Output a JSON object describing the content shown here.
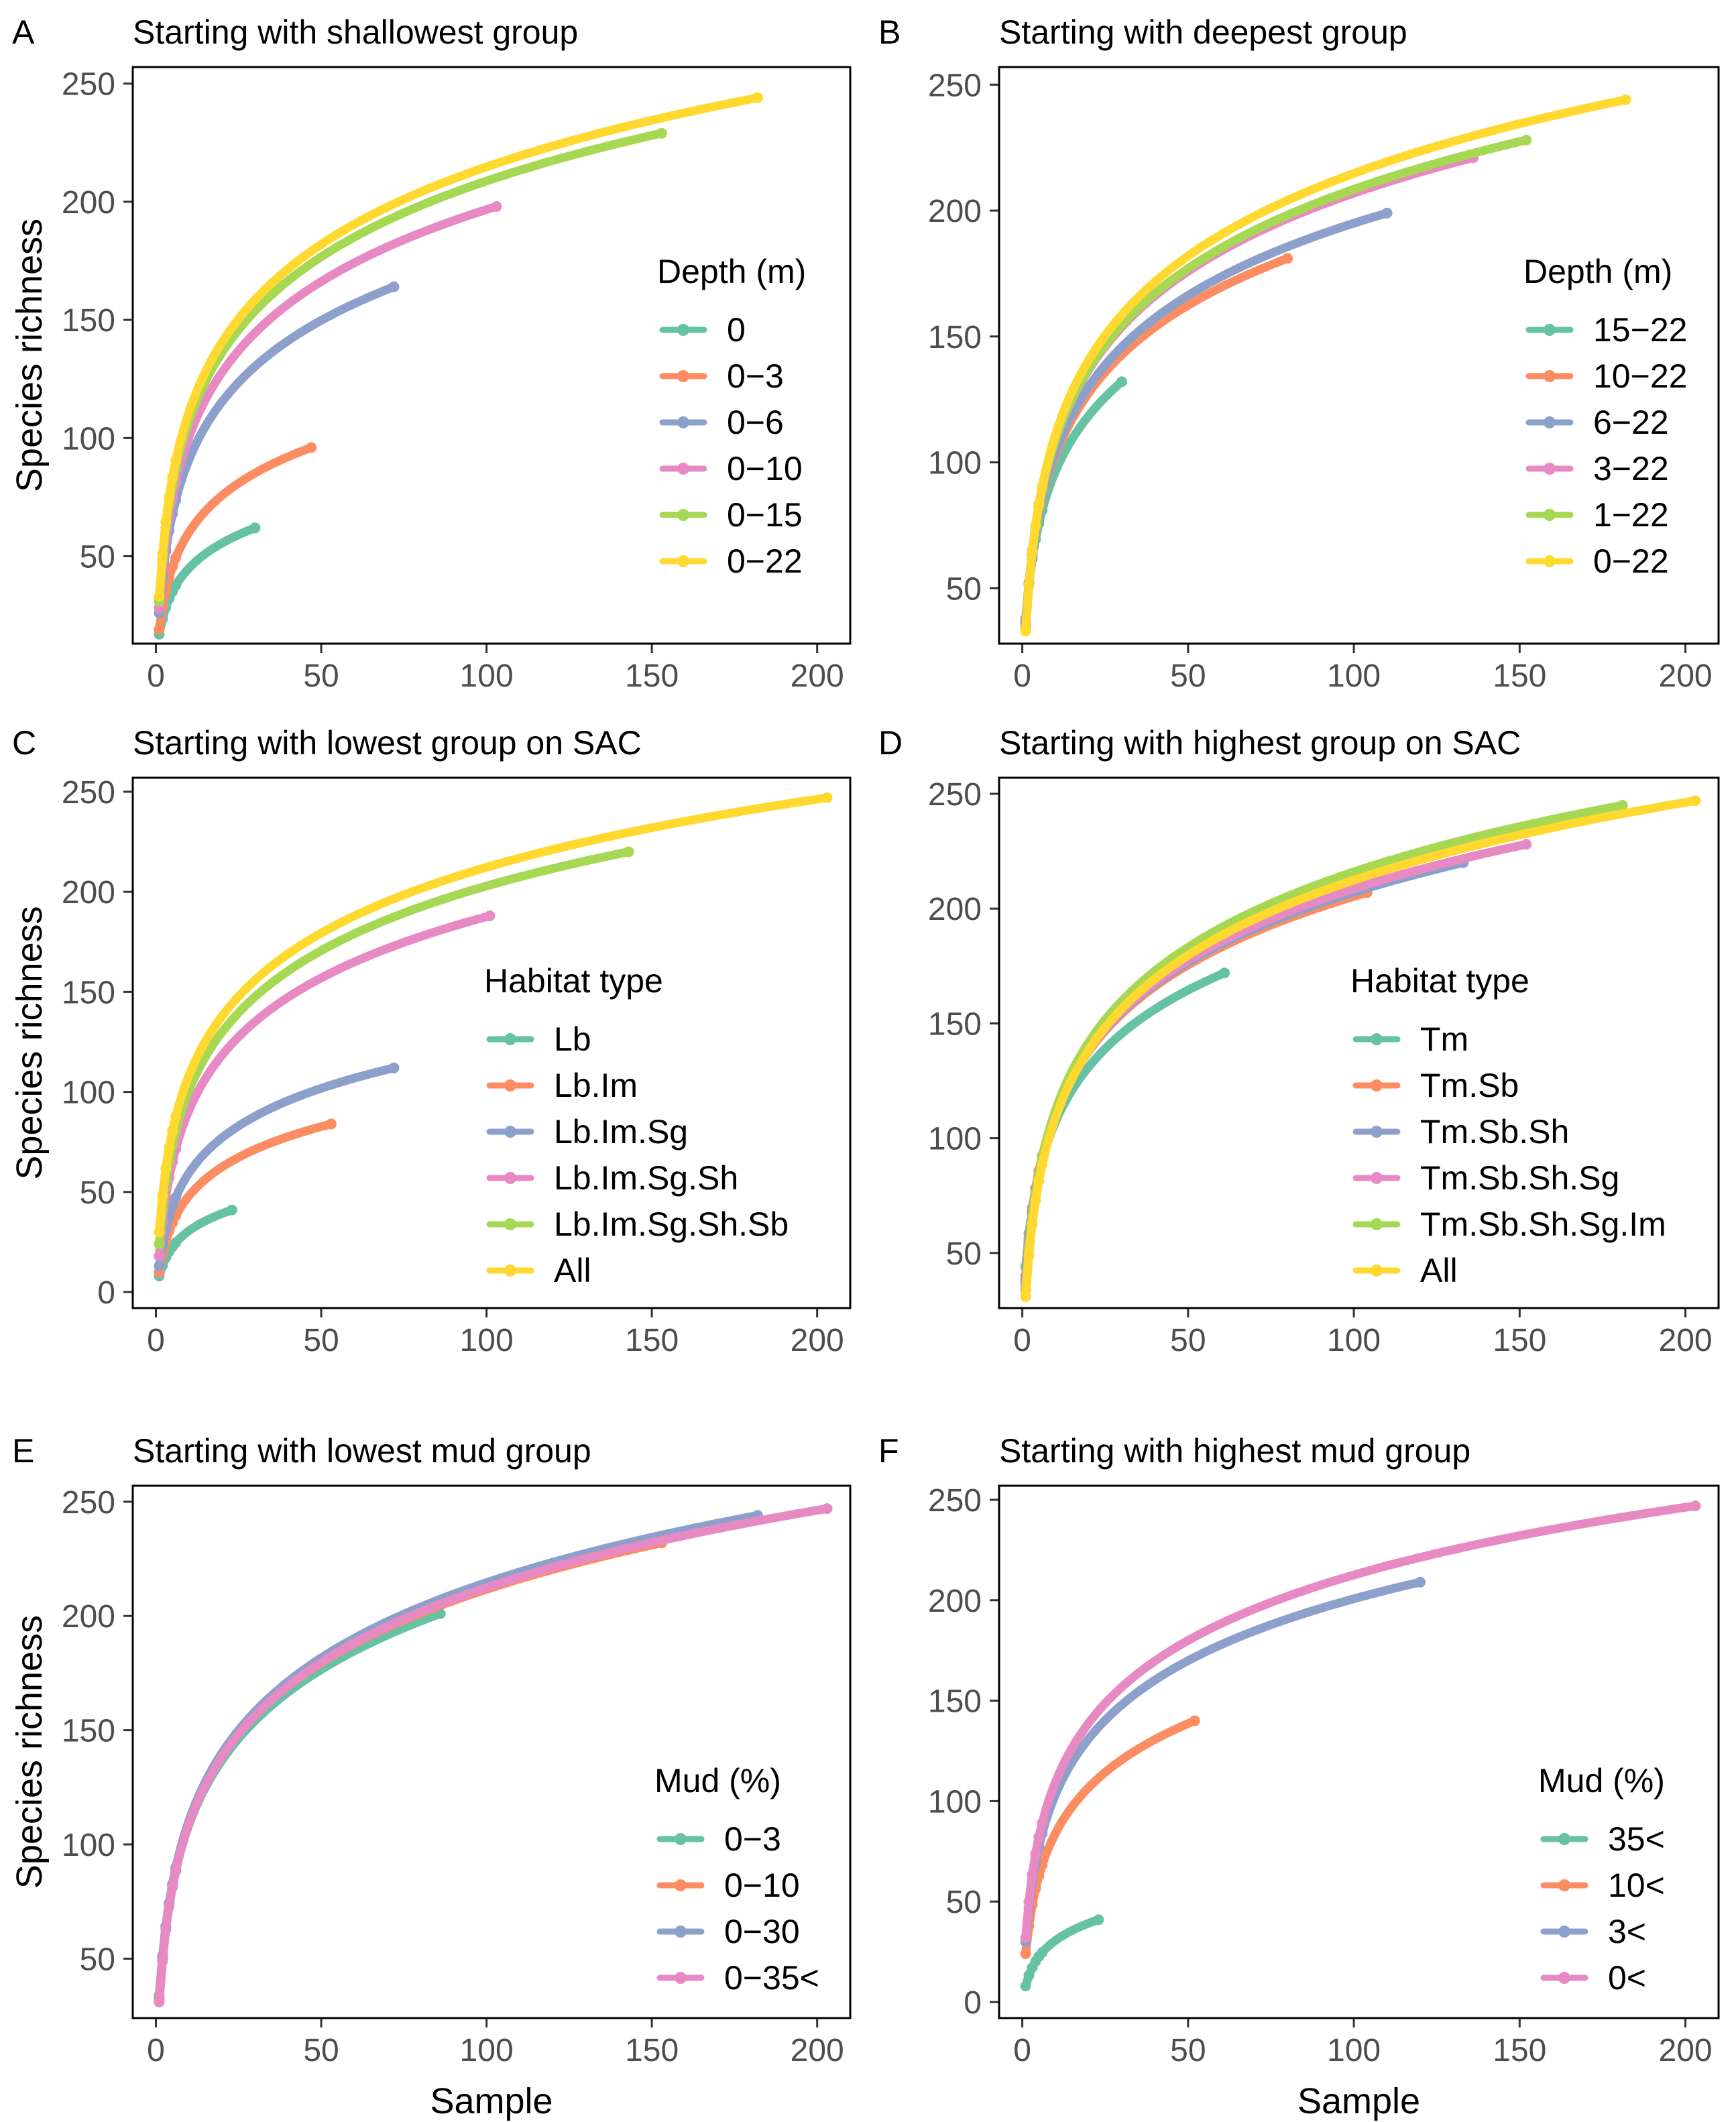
{
  "figure": {
    "colors": {
      "teal": "#66c2a5",
      "orange": "#fc8d62",
      "blue": "#8da0cb",
      "pink": "#e78ac3",
      "green": "#a6d854",
      "yellow": "#ffd92f"
    }
  },
  "chart_data": [
    {
      "id": "A",
      "type": "line",
      "panel_letter": "A",
      "title": "Starting with shallowest group",
      "xlabel": "",
      "ylabel": "Species richness",
      "xlim": [
        -7,
        210
      ],
      "ylim": [
        13,
        257
      ],
      "xticks": [
        0,
        50,
        100,
        150,
        200
      ],
      "yticks": [
        50,
        100,
        150,
        200,
        250
      ],
      "grid": false,
      "legend_title": "Depth (m)",
      "legend_position": "right-inside",
      "series": [
        {
          "name": "0",
          "color": "#66c2a5",
          "n": 30,
          "start": 17,
          "end": 62
        },
        {
          "name": "0−3",
          "color": "#fc8d62",
          "n": 47,
          "start": 19,
          "end": 96
        },
        {
          "name": "0−6",
          "color": "#8da0cb",
          "n": 72,
          "start": 26,
          "end": 164
        },
        {
          "name": "0−10",
          "color": "#e78ac3",
          "n": 103,
          "start": 28,
          "end": 198
        },
        {
          "name": "0−15",
          "color": "#a6d854",
          "n": 153,
          "start": 31,
          "end": 229
        },
        {
          "name": "0−22",
          "color": "#ffd92f",
          "n": 182,
          "start": 33,
          "end": 244
        }
      ]
    },
    {
      "id": "B",
      "type": "line",
      "panel_letter": "B",
      "title": "Starting with deepest group",
      "xlabel": "",
      "ylabel": "",
      "xlim": [
        -7,
        210
      ],
      "ylim": [
        28,
        257
      ],
      "xticks": [
        0,
        50,
        100,
        150,
        200
      ],
      "yticks": [
        50,
        100,
        150,
        200,
        250
      ],
      "grid": false,
      "legend_title": "Depth (m)",
      "legend_position": "right-inside",
      "series": [
        {
          "name": "15−22",
          "color": "#66c2a5",
          "n": 30,
          "start": 38,
          "end": 132
        },
        {
          "name": "10−22",
          "color": "#fc8d62",
          "n": 80,
          "start": 37,
          "end": 181
        },
        {
          "name": "6−22",
          "color": "#8da0cb",
          "n": 110,
          "start": 36,
          "end": 199
        },
        {
          "name": "3−22",
          "color": "#e78ac3",
          "n": 136,
          "start": 35,
          "end": 221
        },
        {
          "name": "1−22",
          "color": "#a6d854",
          "n": 152,
          "start": 34,
          "end": 228
        },
        {
          "name": "0−22",
          "color": "#ffd92f",
          "n": 182,
          "start": 33,
          "end": 244
        }
      ]
    },
    {
      "id": "C",
      "type": "line",
      "panel_letter": "C",
      "title": "Starting with lowest group on SAC",
      "xlabel": "",
      "ylabel": "Species richness",
      "xlim": [
        -7,
        210
      ],
      "ylim": [
        -8,
        257
      ],
      "xticks": [
        0,
        50,
        100,
        150,
        200
      ],
      "yticks": [
        0,
        50,
        100,
        150,
        200,
        250
      ],
      "grid": false,
      "legend_title": "Habitat type",
      "legend_position": "right-inside",
      "series": [
        {
          "name": "Lb",
          "color": "#66c2a5",
          "n": 23,
          "start": 8,
          "end": 41
        },
        {
          "name": "Lb.Im",
          "color": "#fc8d62",
          "n": 53,
          "start": 10,
          "end": 84
        },
        {
          "name": "Lb.Im.Sg",
          "color": "#8da0cb",
          "n": 72,
          "start": 13,
          "end": 112
        },
        {
          "name": "Lb.Im.Sg.Sh",
          "color": "#e78ac3",
          "n": 101,
          "start": 18,
          "end": 188
        },
        {
          "name": "Lb.Im.Sg.Sh.Sb",
          "color": "#a6d854",
          "n": 143,
          "start": 24,
          "end": 220
        },
        {
          "name": "All",
          "color": "#ffd92f",
          "n": 203,
          "start": 30,
          "end": 247
        }
      ]
    },
    {
      "id": "D",
      "type": "line",
      "panel_letter": "D",
      "title": "Starting with highest group on SAC",
      "xlabel": "",
      "ylabel": "",
      "xlim": [
        -7,
        210
      ],
      "ylim": [
        26,
        257
      ],
      "xticks": [
        0,
        50,
        100,
        150,
        200
      ],
      "yticks": [
        50,
        100,
        150,
        200,
        250
      ],
      "grid": false,
      "legend_title": "Habitat type",
      "legend_position": "right-inside",
      "series": [
        {
          "name": "Tm",
          "color": "#66c2a5",
          "n": 61,
          "start": 44,
          "end": 172
        },
        {
          "name": "Tm.Sb",
          "color": "#fc8d62",
          "n": 104,
          "start": 40,
          "end": 207
        },
        {
          "name": "Tm.Sb.Sh",
          "color": "#8da0cb",
          "n": 133,
          "start": 38,
          "end": 220
        },
        {
          "name": "Tm.Sb.Sh.Sg",
          "color": "#e78ac3",
          "n": 152,
          "start": 36,
          "end": 228
        },
        {
          "name": "Tm.Sb.Sh.Sg.Im",
          "color": "#a6d854",
          "n": 181,
          "start": 34,
          "end": 245
        },
        {
          "name": "All",
          "color": "#ffd92f",
          "n": 203,
          "start": 31,
          "end": 247
        }
      ]
    },
    {
      "id": "E",
      "type": "line",
      "panel_letter": "E",
      "title": "Starting with lowest mud group",
      "xlabel": "Sample",
      "ylabel": "Species richness",
      "xlim": [
        -7,
        210
      ],
      "ylim": [
        24,
        257
      ],
      "xticks": [
        0,
        50,
        100,
        150,
        200
      ],
      "yticks": [
        50,
        100,
        150,
        200,
        250
      ],
      "grid": false,
      "legend_title": "Mud (%)",
      "legend_position": "right-inside",
      "series": [
        {
          "name": "0−3",
          "color": "#66c2a5",
          "n": 86,
          "start": 34,
          "end": 201
        },
        {
          "name": "0−10",
          "color": "#fc8d62",
          "n": 153,
          "start": 33,
          "end": 232
        },
        {
          "name": "0−30",
          "color": "#8da0cb",
          "n": 182,
          "start": 32,
          "end": 244
        },
        {
          "name": "0−35<",
          "color": "#e78ac3",
          "n": 203,
          "start": 31,
          "end": 247
        }
      ]
    },
    {
      "id": "F",
      "type": "line",
      "panel_letter": "F",
      "title": "Starting with highest mud group",
      "xlabel": "Sample",
      "ylabel": "",
      "xlim": [
        -7,
        210
      ],
      "ylim": [
        -8,
        257
      ],
      "xticks": [
        0,
        50,
        100,
        150,
        200
      ],
      "yticks": [
        0,
        50,
        100,
        150,
        200,
        250
      ],
      "grid": false,
      "legend_title": "Mud (%)",
      "legend_position": "right-inside",
      "series": [
        {
          "name": "35<",
          "color": "#66c2a5",
          "n": 23,
          "start": 8,
          "end": 41
        },
        {
          "name": "10<",
          "color": "#fc8d62",
          "n": 52,
          "start": 24,
          "end": 140
        },
        {
          "name": "3<",
          "color": "#8da0cb",
          "n": 120,
          "start": 30,
          "end": 209
        },
        {
          "name": "0<",
          "color": "#e78ac3",
          "n": 203,
          "start": 32,
          "end": 247
        }
      ]
    }
  ]
}
